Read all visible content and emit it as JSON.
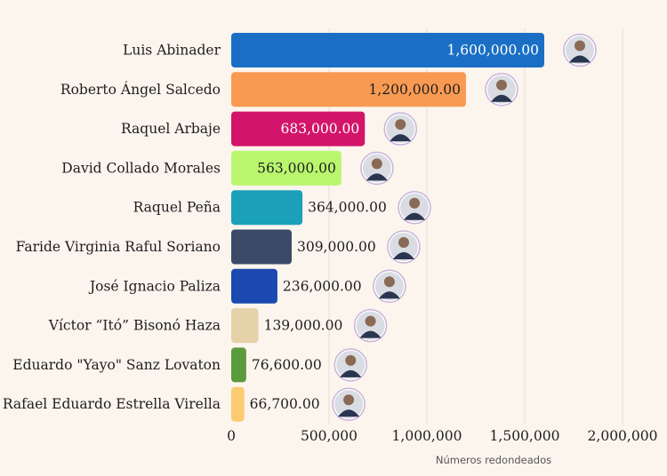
{
  "chart_data": {
    "type": "bar",
    "orientation": "horizontal",
    "categories": [
      "Luis Abinader",
      "Roberto Ángel Salcedo",
      "Raquel Arbaje",
      "David Collado Morales",
      "Raquel Peña",
      "Faride Virginia Raful Soriano",
      "José Ignacio Paliza",
      "Víctor “Itó” Bisonó Haza",
      "Eduardo \"Yayo\" Sanz Lovaton",
      "Rafael Eduardo Estrella Virella"
    ],
    "values": [
      1600000,
      1200000,
      683000,
      563000,
      364000,
      309000,
      236000,
      139000,
      76600,
      66700
    ],
    "value_labels": [
      "1,600,000.00",
      "1,200,000.00",
      "683,000.00",
      "563,000.00",
      "364,000.00",
      "309,000.00",
      "236,000.00",
      "139,000.00",
      "76,600.00",
      "66,700.00"
    ],
    "colors": [
      "#1a6fc4",
      "#f89a52",
      "#d2156a",
      "#b9f66e",
      "#1aa0b8",
      "#3b4a68",
      "#1b49b0",
      "#e5d2a8",
      "#5b9a3d",
      "#fcca70"
    ],
    "label_colors": [
      "#ffffff",
      "#1e1e1e",
      "#ffffff",
      "#1e1e1e",
      "#1e1e1e",
      "#1e1e1e",
      "#1e1e1e",
      "#1e1e1e",
      "#1e1e1e",
      "#1e1e1e"
    ],
    "label_inside": [
      true,
      true,
      true,
      true,
      false,
      false,
      false,
      false,
      false,
      false
    ],
    "xticks": [
      0,
      500000,
      1000000,
      1500000,
      2000000
    ],
    "xtick_labels": [
      "0",
      "500,000",
      "1,000,000",
      "1,500,000",
      "2,000,000"
    ],
    "xlim": [
      0,
      2000000
    ],
    "grid": true,
    "note": "Números redondeados",
    "avatar_icon": "person-photo-icon"
  }
}
